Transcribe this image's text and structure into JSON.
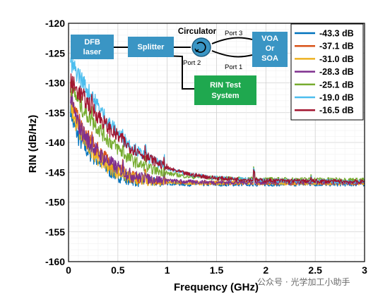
{
  "chart_data": {
    "type": "line",
    "title": "",
    "xlabel": "Frequency (GHz)",
    "ylabel": "RIN (dB/Hz)",
    "xlim": [
      0,
      3
    ],
    "ylim": [
      -160,
      -120
    ],
    "x_ticks": [
      0,
      0.5,
      1,
      1.5,
      2,
      2.5,
      3
    ],
    "x_tick_labels": [
      "0",
      "0.5",
      "1",
      "1.5",
      "2",
      "2.5",
      "3"
    ],
    "y_ticks": [
      -160,
      -155,
      -150,
      -145,
      -140,
      -135,
      -130,
      -125,
      -120
    ],
    "y_tick_labels": [
      "-160",
      "-155",
      "-150",
      "-145",
      "-140",
      "-135",
      "-130",
      "-125",
      "-120"
    ],
    "grid": true,
    "legend_position": "top-right",
    "series": [
      {
        "name": "-43.3 dB",
        "color": "#0072BD",
        "x": [
          0.02,
          0.05,
          0.1,
          0.15,
          0.2,
          0.3,
          0.4,
          0.5,
          0.6,
          0.7,
          0.8,
          1.0,
          1.2,
          1.5,
          2.0,
          2.5,
          3.0
        ],
        "y": [
          -134,
          -137,
          -139,
          -140.5,
          -141.5,
          -143,
          -144.5,
          -145.5,
          -146,
          -146.5,
          -146.5,
          -146.8,
          -147,
          -147,
          -147,
          -147,
          -147
        ]
      },
      {
        "name": "-37.1 dB",
        "color": "#D95319",
        "x": [
          0.02,
          0.05,
          0.1,
          0.15,
          0.2,
          0.3,
          0.4,
          0.5,
          0.6,
          0.7,
          0.8,
          1.0,
          1.2,
          1.5,
          2.0,
          2.5,
          3.0
        ],
        "y": [
          -131,
          -134,
          -136.5,
          -138,
          -139.5,
          -141.5,
          -143,
          -144.5,
          -145.5,
          -146,
          -146.2,
          -146.5,
          -146.7,
          -146.8,
          -146.8,
          -146.8,
          -146.8
        ]
      },
      {
        "name": "-31.0 dB",
        "color": "#EDB120",
        "x": [
          0.02,
          0.05,
          0.1,
          0.15,
          0.2,
          0.3,
          0.4,
          0.5,
          0.6,
          0.7,
          0.8,
          1.0,
          1.2,
          1.5,
          2.0,
          2.5,
          3.0
        ],
        "y": [
          -133,
          -135.5,
          -138,
          -139.5,
          -140.5,
          -142.5,
          -144,
          -145,
          -145.8,
          -146.2,
          -146.4,
          -146.6,
          -146.8,
          -146.8,
          -146.8,
          -146.8,
          -146.8
        ]
      },
      {
        "name": "-28.3 dB",
        "color": "#7E2F8E",
        "x": [
          0.02,
          0.05,
          0.1,
          0.15,
          0.2,
          0.3,
          0.4,
          0.5,
          0.6,
          0.7,
          0.8,
          1.0,
          1.2,
          1.5,
          2.0,
          2.5,
          3.0
        ],
        "y": [
          -132,
          -134.5,
          -137,
          -138.5,
          -139.8,
          -141.8,
          -143.2,
          -144.3,
          -145.2,
          -145.8,
          -146.1,
          -146.4,
          -146.6,
          -146.7,
          -146.7,
          -146.7,
          -146.7
        ]
      },
      {
        "name": "-25.1 dB",
        "color": "#77AC30",
        "x": [
          0.02,
          0.05,
          0.1,
          0.15,
          0.2,
          0.3,
          0.4,
          0.5,
          0.6,
          0.7,
          0.8,
          1.0,
          1.2,
          1.5,
          2.0,
          2.5,
          3.0
        ],
        "y": [
          -130,
          -131.5,
          -133,
          -134.5,
          -135.5,
          -137.5,
          -139.5,
          -141,
          -142.5,
          -143.5,
          -144.3,
          -145.2,
          -145.7,
          -146,
          -146.2,
          -146.2,
          -146.3
        ]
      },
      {
        "name": "-19.0 dB",
        "color": "#4DBEEE",
        "x": [
          0.02,
          0.05,
          0.1,
          0.15,
          0.2,
          0.3,
          0.4,
          0.5,
          0.6,
          0.7,
          0.8,
          1.0,
          1.2,
          1.5,
          2.0,
          2.5,
          3.0
        ],
        "y": [
          -127,
          -127.5,
          -128.5,
          -130,
          -131.5,
          -134,
          -136.5,
          -138.5,
          -140,
          -141.5,
          -142.5,
          -144.3,
          -145.3,
          -146,
          -146.4,
          -146.5,
          -146.6
        ]
      },
      {
        "name": "-16.5 dB",
        "color": "#A2142F",
        "x": [
          0.02,
          0.05,
          0.1,
          0.15,
          0.2,
          0.3,
          0.4,
          0.5,
          0.6,
          0.7,
          0.8,
          1.0,
          1.2,
          1.5,
          2.0,
          2.5,
          3.0
        ],
        "y": [
          -130,
          -130.5,
          -131.5,
          -132.5,
          -133.5,
          -135.5,
          -137.5,
          -139,
          -140.5,
          -141.5,
          -142.5,
          -144.3,
          -145.3,
          -146,
          -146.4,
          -146.5,
          -146.6
        ]
      }
    ],
    "annotations": {
      "blocks": [
        {
          "id": "dfb",
          "text": [
            "DFB",
            "laser"
          ],
          "color": "#3A95C4"
        },
        {
          "id": "splitter",
          "text": [
            "Splitter"
          ],
          "color": "#3A95C4"
        },
        {
          "id": "voa",
          "text": [
            "VOA",
            "Or",
            "SOA"
          ],
          "color": "#3A95C4"
        },
        {
          "id": "rin",
          "text": [
            "RIN Test",
            "System"
          ],
          "color": "#1FA84F"
        }
      ],
      "circulator_label": "Circulator",
      "port_labels": [
        "Port 3",
        "Port 2",
        "Port 1"
      ]
    }
  },
  "watermark": "公众号 · 光学加工小助手"
}
